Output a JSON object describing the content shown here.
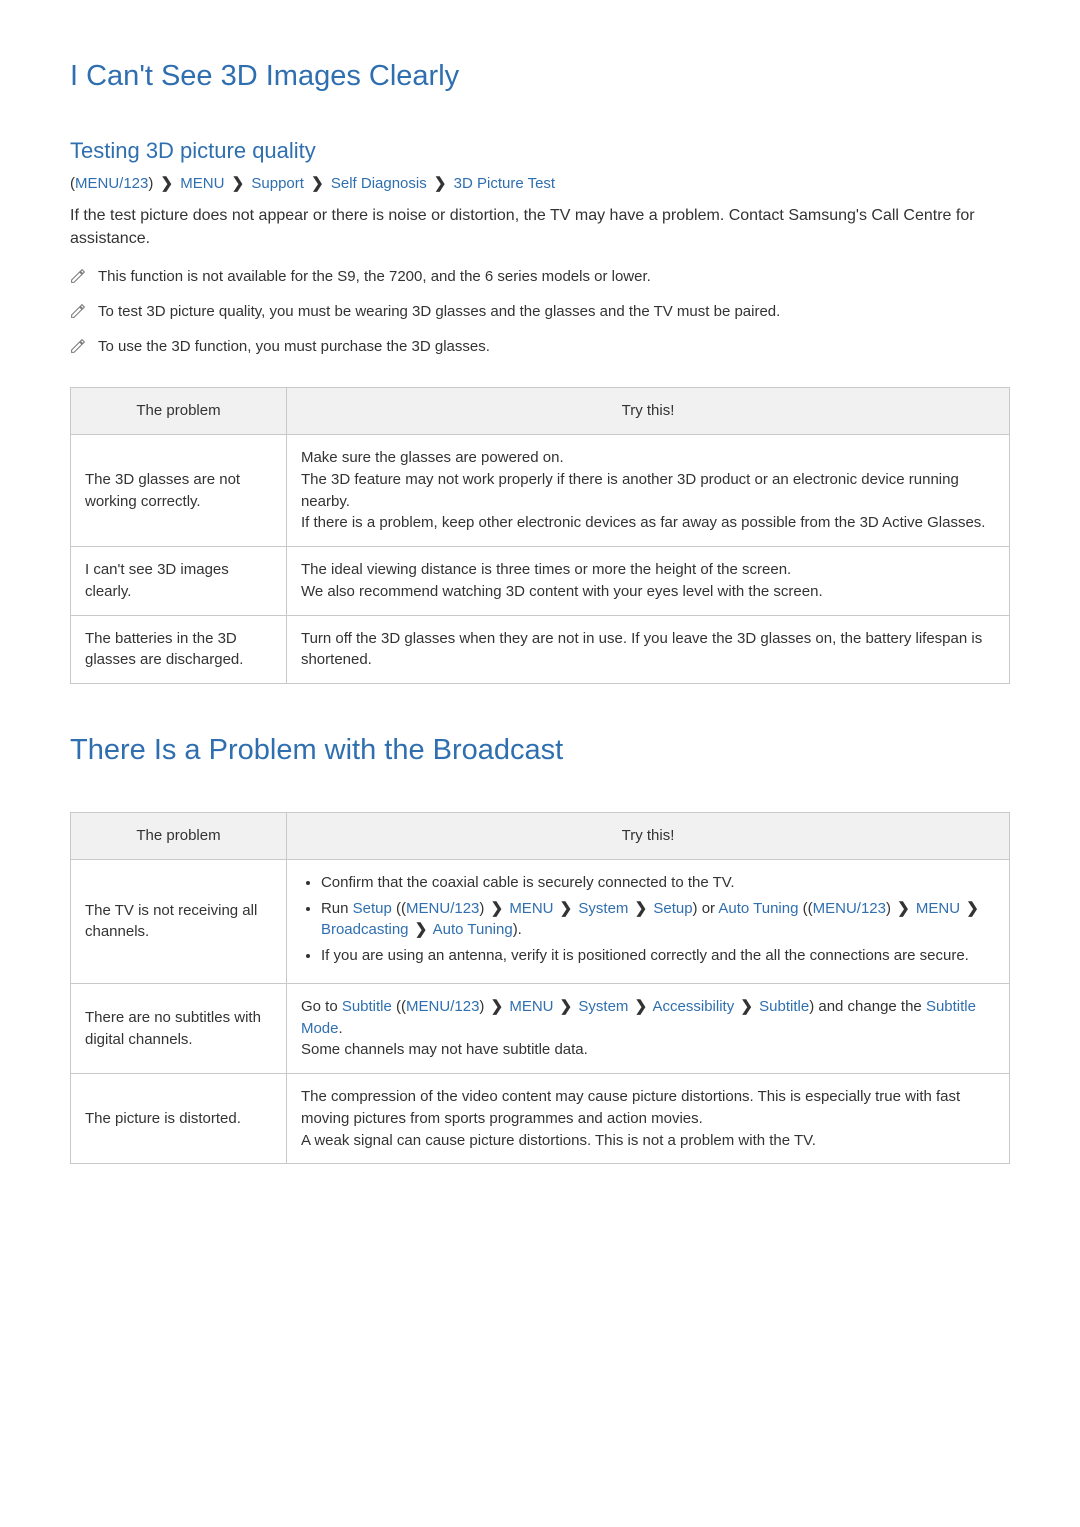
{
  "section1": {
    "title": "I Can't See 3D Images Clearly",
    "subtitle": "Testing 3D picture quality",
    "path": {
      "menu123": "MENU/123",
      "steps": [
        "MENU",
        "Support",
        "Self Diagnosis",
        "3D Picture Test"
      ]
    },
    "lead": "If the test picture does not appear or there is noise or distortion, the TV may have a problem. Contact Samsung's Call Centre for assistance.",
    "notes": [
      "This function is not available for the S9, the 7200, and the 6 series models or lower.",
      "To test 3D picture quality, you must be wearing 3D glasses and the glasses and the TV must be paired.",
      "To use the 3D function, you must purchase the 3D glasses."
    ],
    "table": {
      "headers": [
        "The problem",
        "Try this!"
      ],
      "rows": [
        {
          "problem": "The 3D glasses are not working correctly.",
          "solution": "Make sure the glasses are powered on.\nThe 3D feature may not work properly if there is another 3D product or an electronic device running nearby.\nIf there is a problem, keep other electronic devices as far away as possible from the 3D Active Glasses."
        },
        {
          "problem": "I can't see 3D images clearly.",
          "solution": "The ideal viewing distance is three times or more the height of the screen.\nWe also recommend watching 3D content with your eyes level with the screen."
        },
        {
          "problem": "The batteries in the 3D glasses are discharged.",
          "solution": "Turn off the 3D glasses when they are not in use. If you leave the 3D glasses on, the battery lifespan is shortened."
        }
      ]
    }
  },
  "section2": {
    "title": "There Is a Problem with the Broadcast",
    "table": {
      "headers": [
        "The problem",
        "Try this!"
      ],
      "rows": [
        {
          "problem": "The TV is not receiving all channels.",
          "solution": {
            "type": "list",
            "items": [
              {
                "text": "Confirm that the coaxial cable is securely connected to the TV."
              },
              {
                "prefix": "Run ",
                "term1": "Setup",
                "open1": " (",
                "path1": {
                  "menu123": "MENU/123",
                  "steps": [
                    "MENU",
                    "System",
                    "Setup"
                  ]
                },
                "close1": ")",
                "middle": " or ",
                "term2": "Auto Tuning",
                "open2": " (",
                "path2": {
                  "menu123": "MENU/123",
                  "steps": [
                    "MENU",
                    "Broadcasting",
                    "Auto Tuning"
                  ]
                },
                "close2": ")."
              },
              {
                "text": "If you are using an antenna, verify it is positioned correctly and the all the connections are secure."
              }
            ]
          }
        },
        {
          "problem": "There are no subtitles with digital channels.",
          "solution": {
            "type": "subtitle",
            "prefix": "Go to ",
            "term": "Subtitle",
            "open": " (",
            "path": {
              "menu123": "MENU/123",
              "steps": [
                "MENU",
                "System",
                "Accessibility",
                "Subtitle"
              ]
            },
            "close": ")",
            "middle": " and change the ",
            "term2": "Subtitle Mode",
            "suffix": ".\nSome channels may not have subtitle data."
          }
        },
        {
          "problem": "The picture is distorted.",
          "solution": "The compression of the video content may cause picture distortions. This is especially true with fast moving pictures from sports programmes and action movies.\nA weak signal can cause picture distortions. This is not a problem with the TV."
        }
      ]
    }
  },
  "style": {
    "heading_color": "#2f6fb0",
    "note_icon_color": "#7a7a7a",
    "table_border_color": "#c9c9c9",
    "table_header_bg": "#f1f1f1"
  }
}
